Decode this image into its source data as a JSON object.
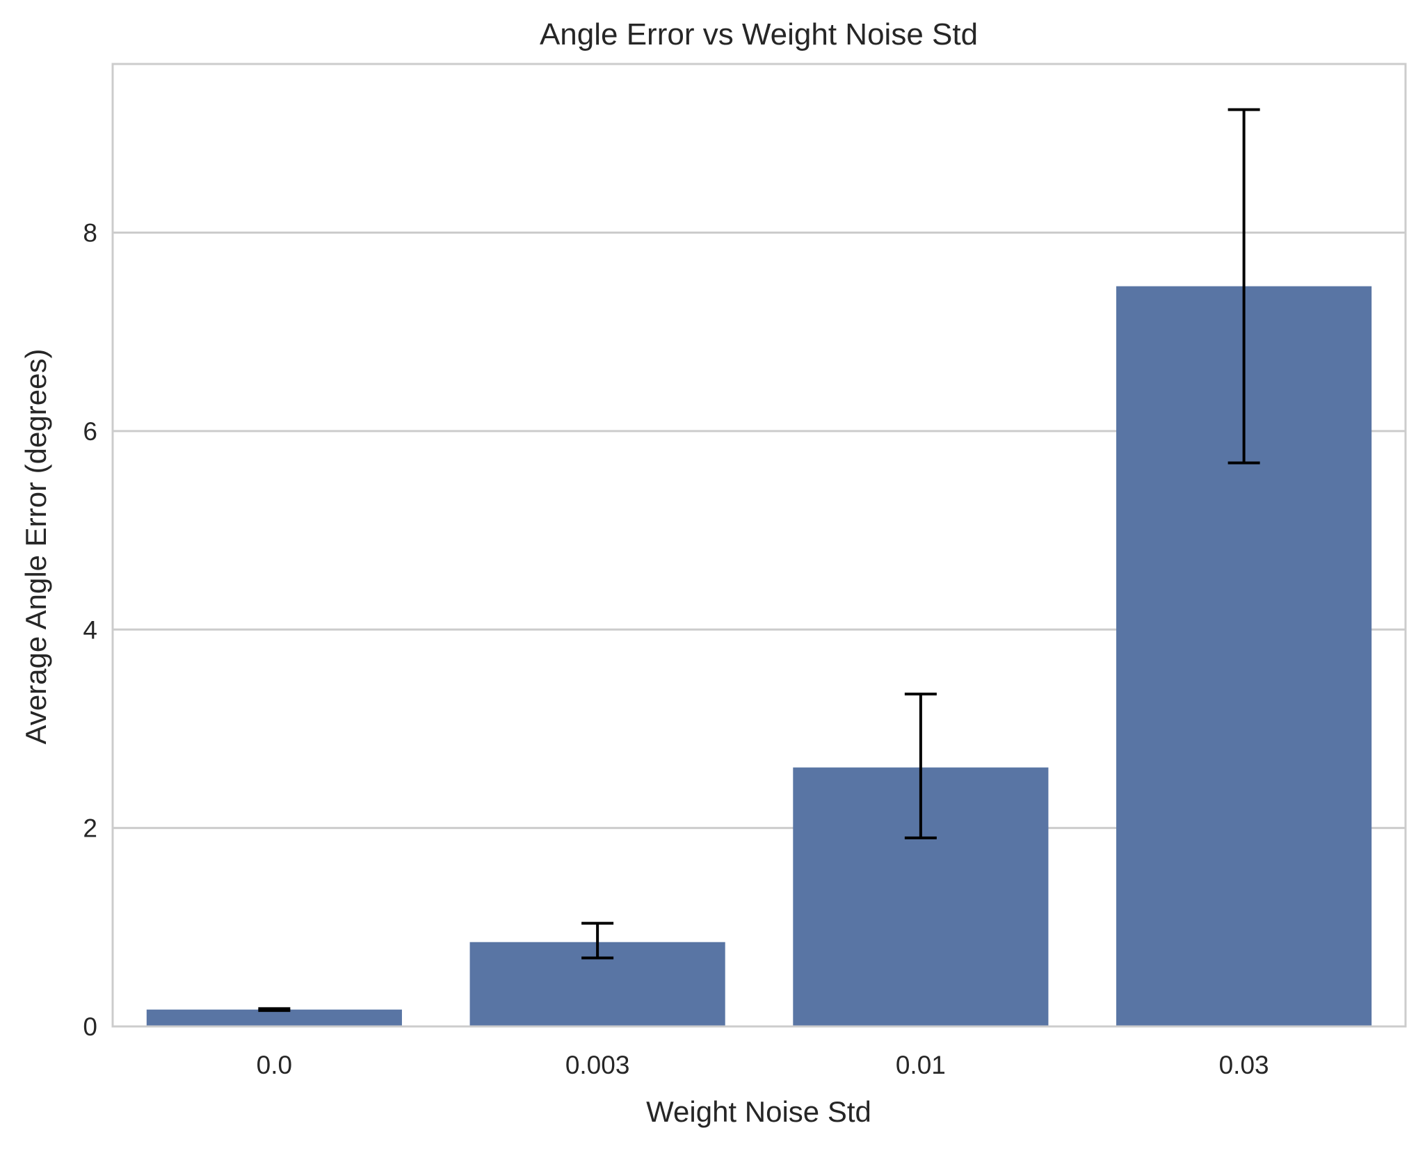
{
  "chart_data": {
    "type": "bar",
    "title": "Angle Error vs Weight Noise Std",
    "xlabel": "Weight Noise Std",
    "ylabel": "Average Angle Error (degrees)",
    "categories": [
      "0.0",
      "0.003",
      "0.01",
      "0.03"
    ],
    "values": [
      0.17,
      0.85,
      2.61,
      7.46
    ],
    "error_bars": [
      {
        "low": 0.16,
        "high": 0.18
      },
      {
        "low": 0.69,
        "high": 1.04
      },
      {
        "low": 1.9,
        "high": 3.35
      },
      {
        "low": 5.68,
        "high": 9.24
      }
    ],
    "ylim": [
      0,
      9.7
    ],
    "yticks": [
      0,
      2,
      4,
      6,
      8
    ],
    "ytick_labels": [
      "0",
      "2",
      "4",
      "6",
      "8"
    ],
    "grid": "horizontal",
    "legend": "none",
    "colors": {
      "bar": "#5975a4",
      "error_bar": "#000000",
      "grid": "#cccccc",
      "spine": "#cccccc",
      "text": "#262626",
      "background": "#ffffff"
    }
  }
}
